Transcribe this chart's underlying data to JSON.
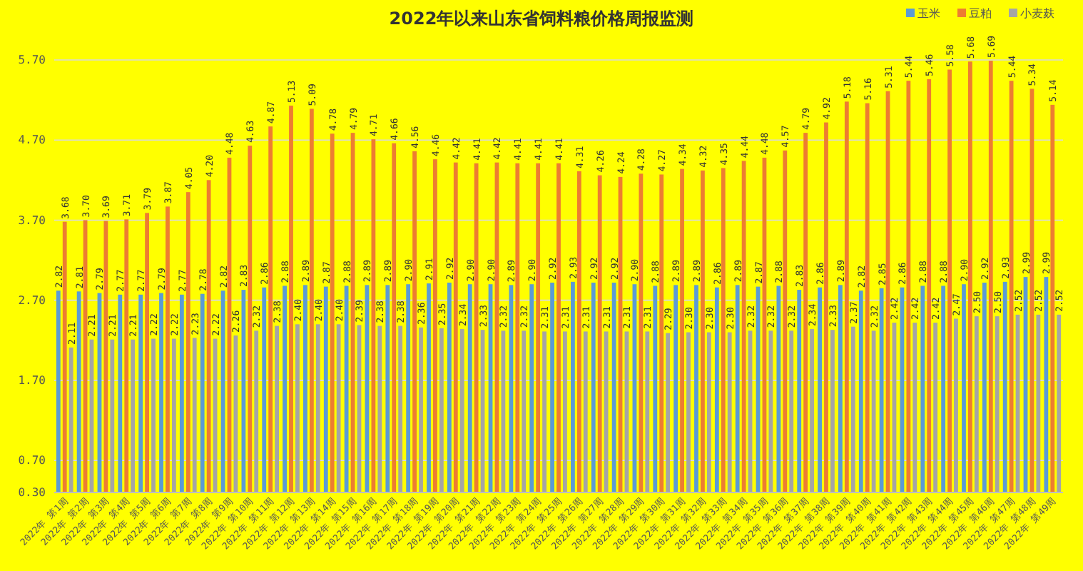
{
  "chart_data": {
    "type": "bar",
    "title": "2022年以来山东省饲料粮价格周报监测",
    "categories": [
      "2022年 第1周",
      "2022年 第2周",
      "2022年 第3周",
      "2022年 第4周",
      "2022年 第5周",
      "2022年 第6周",
      "2022年 第7周",
      "2022年 第8周",
      "2022年 第9周",
      "2022年 第10周",
      "2022年 第11周",
      "2022年 第12周",
      "2022年 第13周",
      "2022年 第14周",
      "2022年 第15周",
      "2022年 第16周",
      "2022年 第17周",
      "2022年 第18周",
      "2022年 第19周",
      "2022年 第20周",
      "2022年 第21周",
      "2022年 第22周",
      "2022年 第23周",
      "2022年 第24周",
      "2022年 第25周",
      "2022年 第26周",
      "2022年 第27周",
      "2022年 第28周",
      "2022年 第29周",
      "2022年 第30周",
      "2022年 第31周",
      "2022年 第32周",
      "2022年 第33周",
      "2022年 第34周",
      "2022年 第35周",
      "2022年 第36周",
      "2022年 第37周",
      "2022年 第38周",
      "2022年 第39周",
      "2022年 第40周",
      "2022年 第41周",
      "2022年 第42周",
      "2022年 第43周",
      "2022年 第44周",
      "2022年 第45周",
      "2022年 第46周",
      "2022年 第47周",
      "2022年 第48周",
      "2022年 第49周"
    ],
    "series": [
      {
        "name": "玉米",
        "color": "#5b9bd5",
        "values": [
          2.82,
          2.81,
          2.79,
          2.77,
          2.77,
          2.79,
          2.77,
          2.78,
          2.82,
          2.83,
          2.86,
          2.88,
          2.89,
          2.87,
          2.88,
          2.89,
          2.89,
          2.9,
          2.91,
          2.92,
          2.9,
          2.9,
          2.89,
          2.9,
          2.92,
          2.93,
          2.92,
          2.92,
          2.9,
          2.88,
          2.89,
          2.89,
          2.86,
          2.89,
          2.87,
          2.88,
          2.83,
          2.86,
          2.89,
          2.82,
          2.85,
          2.86,
          2.88,
          2.88,
          2.9,
          2.92,
          2.93,
          2.99,
          2.99
        ],
        "value_labels": [
          "2.82",
          "2.81",
          "2.79",
          "2.77",
          "2.77",
          "2.79",
          "2.77",
          "2.78",
          "2.82",
          "2.83",
          "2.86",
          "2.88",
          "2.89",
          "2.87",
          "2.88",
          "2.89",
          "2.89",
          "2.90",
          "2.91",
          "2.92",
          "2.90",
          "2.90",
          "2.89",
          "2.90",
          "2.92",
          "2.93",
          "2.92",
          "2.92",
          "2.90",
          "2.88",
          "2.89",
          "2.89",
          "2.86",
          "2.89",
          "2.87",
          "2.88",
          "2.83",
          "2.86",
          "2.89",
          "2.82",
          "2.85",
          "2.86",
          "2.88",
          "2.88",
          "2.90",
          "2.92",
          "2.93",
          "2.99",
          "2.99"
        ]
      },
      {
        "name": "豆粕",
        "color": "#ed7d31",
        "values": [
          3.68,
          3.7,
          3.69,
          3.71,
          3.79,
          3.87,
          4.05,
          4.2,
          4.48,
          4.63,
          4.87,
          5.13,
          5.09,
          4.78,
          4.79,
          4.71,
          4.66,
          4.56,
          4.46,
          4.42,
          4.41,
          4.42,
          4.41,
          4.41,
          4.41,
          4.31,
          4.26,
          4.24,
          4.28,
          4.27,
          4.34,
          4.32,
          4.35,
          4.44,
          4.48,
          4.57,
          4.79,
          4.92,
          5.18,
          5.16,
          5.31,
          5.44,
          5.46,
          5.58,
          5.68,
          5.69,
          5.44,
          5.34,
          5.14
        ],
        "value_labels": [
          "3.68",
          "3.70",
          "3.69",
          "3.71",
          "3.79",
          "3.87",
          "4.05",
          "4.20",
          "4.48",
          "4.63",
          "4.87",
          "5.13",
          "5.09",
          "4.78",
          "4.79",
          "4.71",
          "4.66",
          "4.56",
          "4.46",
          "4.42",
          "4.41",
          "4.42",
          "4.41",
          "4.41",
          "4.41",
          "4.31",
          "4.26",
          "4.24",
          "4.28",
          "4.27",
          "4.34",
          "4.32",
          "4.35",
          "4.44",
          "4.48",
          "4.57",
          "4.79",
          "4.92",
          "5.18",
          "5.16",
          "5.31",
          "5.44",
          "5.46",
          "5.58",
          "5.68",
          "5.69",
          "5.44",
          "5.34",
          "5.14"
        ]
      },
      {
        "name": "小麦麸",
        "color": "#a5a5a5",
        "values": [
          2.11,
          2.21,
          2.21,
          2.21,
          2.22,
          2.22,
          2.23,
          2.22,
          2.26,
          2.32,
          2.38,
          2.4,
          2.4,
          2.4,
          2.39,
          2.38,
          2.38,
          2.36,
          2.35,
          2.34,
          2.33,
          2.32,
          2.32,
          2.31,
          2.31,
          2.31,
          2.31,
          2.31,
          2.31,
          2.29,
          2.3,
          2.3,
          2.3,
          2.32,
          2.32,
          2.32,
          2.34,
          2.33,
          2.37,
          2.32,
          2.42,
          2.42,
          2.42,
          2.47,
          2.5,
          2.5,
          2.52,
          2.52,
          2.52
        ],
        "value_labels": [
          "2.11",
          "2.21",
          "2.21",
          "2.21",
          "2.22",
          "2.22",
          "2.23",
          "2.22",
          "2.26",
          "2.32",
          "2.38",
          "2.40",
          "2.40",
          "2.40",
          "2.39",
          "2.38",
          "2.38",
          "2.36",
          "2.35",
          "2.34",
          "2.33",
          "2.32",
          "2.32",
          "2.31",
          "2.31",
          "2.31",
          "2.31",
          "2.31",
          "2.31",
          "2.29",
          "2.30",
          "2.30",
          "2.30",
          "2.32",
          "2.32",
          "2.32",
          "2.34",
          "2.33",
          "2.37",
          "2.32",
          "2.42",
          "2.42",
          "2.42",
          "2.47",
          "2.50",
          "2.50",
          "2.52",
          "2.52",
          "2.52"
        ]
      }
    ],
    "ylim": [
      0.3,
      5.7
    ],
    "yticks": [
      {
        "value": 0.3,
        "label": "0.30"
      },
      {
        "value": 0.7,
        "label": "0.70"
      },
      {
        "value": 1.7,
        "label": "1.70"
      },
      {
        "value": 2.7,
        "label": "2.70"
      },
      {
        "value": 3.7,
        "label": "3.70"
      },
      {
        "value": 4.7,
        "label": "4.70"
      },
      {
        "value": 5.7,
        "label": "5.70"
      }
    ],
    "grid": "y",
    "legend": "top right"
  }
}
